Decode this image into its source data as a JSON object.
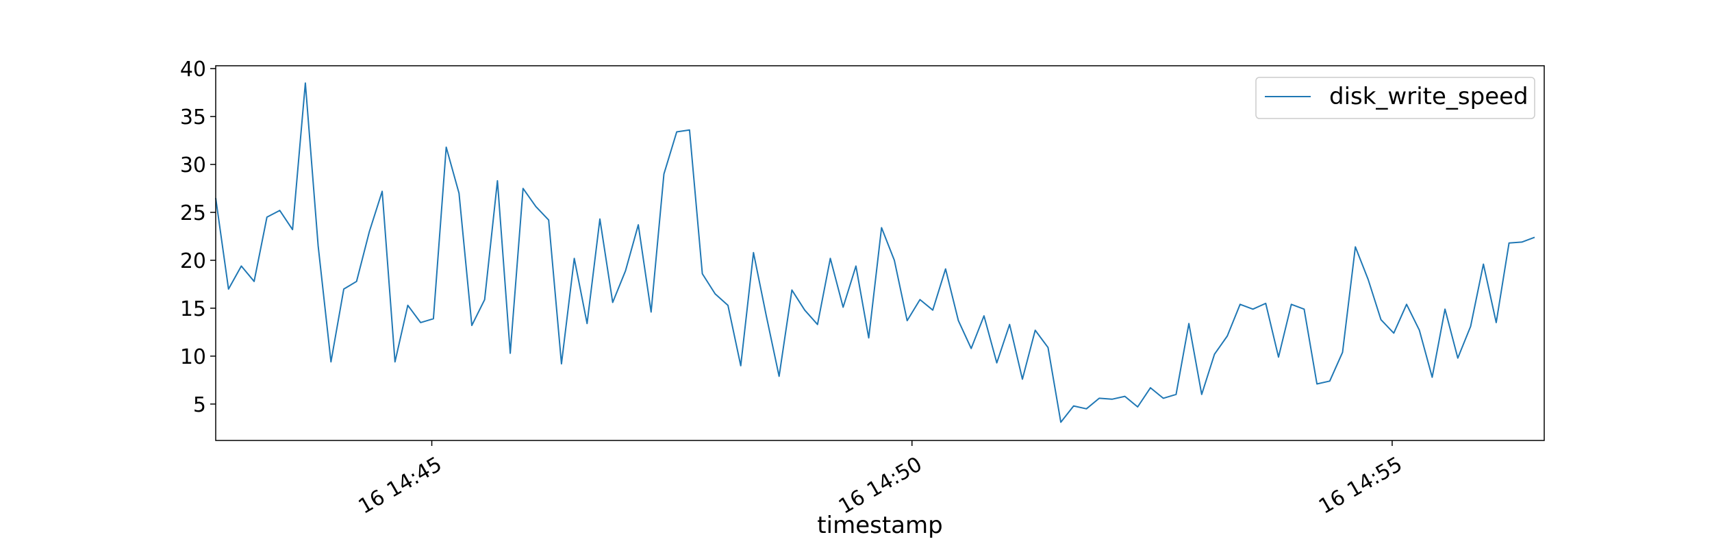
{
  "chart_data": {
    "type": "line",
    "title": "",
    "xlabel": "timestamp",
    "ylabel": "",
    "x_ticks": [
      "16 14:45",
      "16 14:50",
      "16 14:55"
    ],
    "y_ticks": [
      5,
      10,
      15,
      20,
      25,
      30,
      35,
      40
    ],
    "ylim": [
      1.2,
      40.3
    ],
    "x_range": [
      "16 14:42:45",
      "16 14:56:35"
    ],
    "sample_interval_seconds": 8,
    "grid": false,
    "legend_position": "top-right",
    "series": [
      {
        "name": "disk_write_speed",
        "color": "#1f77b4",
        "values": [
          26.5,
          17.0,
          19.4,
          17.8,
          24.5,
          25.2,
          23.2,
          38.5,
          21.5,
          9.4,
          17.0,
          17.8,
          23.0,
          27.2,
          9.4,
          15.3,
          13.5,
          13.9,
          31.8,
          27.0,
          13.2,
          15.9,
          28.3,
          10.3,
          27.5,
          25.6,
          24.2,
          9.2,
          20.2,
          13.4,
          24.3,
          15.6,
          18.9,
          23.7,
          14.6,
          29.0,
          33.4,
          33.6,
          18.6,
          16.5,
          15.3,
          9.0,
          20.8,
          14.2,
          7.9,
          16.9,
          14.8,
          13.3,
          20.2,
          15.1,
          19.4,
          11.9,
          23.4,
          20.0,
          13.7,
          15.9,
          14.8,
          19.1,
          13.7,
          10.8,
          14.2,
          9.3,
          13.3,
          7.6,
          12.7,
          10.9,
          3.1,
          4.8,
          4.5,
          5.6,
          5.5,
          5.8,
          4.7,
          6.7,
          5.6,
          6.0,
          13.4,
          6.0,
          10.2,
          12.1,
          15.4,
          14.9,
          15.5,
          9.9,
          15.4,
          14.9,
          7.1,
          7.4,
          10.4,
          21.4,
          18.0,
          13.8,
          12.4,
          15.4,
          12.7,
          7.8,
          14.9,
          9.8,
          13.1,
          19.6,
          13.5,
          21.8,
          21.9,
          22.4
        ]
      }
    ]
  }
}
